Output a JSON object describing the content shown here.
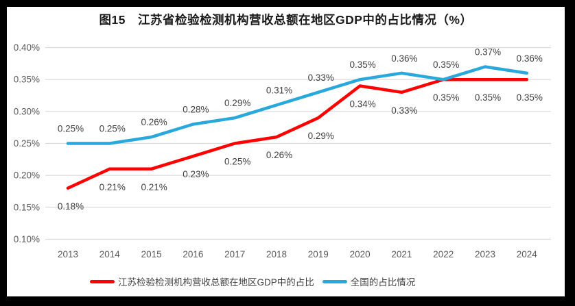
{
  "title": "图15　江苏省检验检测机构营收总额在地区GDP中的占比情况（%）",
  "colors": {
    "jiangsu_red": "#FF0000",
    "national_blue": "#29A8DC",
    "gridline": "#D9D9D9",
    "axis_text": "#595959",
    "label_text": "#404040",
    "frame": "#000000",
    "panel": "#FFFFFF"
  },
  "chart_data": {
    "type": "line",
    "title": "图15　江苏省检验检测机构营收总额在地区GDP中的占比情况（%）",
    "categories": [
      "2013",
      "2014",
      "2015",
      "2016",
      "2017",
      "2018",
      "2019",
      "2020",
      "2021",
      "2022",
      "2023",
      "2024"
    ],
    "series": [
      {
        "name": "江苏检验检测机构营收总额在地区GDP中的占比",
        "color": "#FF0000",
        "label_position": "below",
        "values": [
          0.18,
          0.21,
          0.21,
          0.23,
          0.25,
          0.26,
          0.29,
          0.34,
          0.33,
          0.35,
          0.35,
          0.35
        ],
        "labels": [
          "0.18%",
          "0.21%",
          "0.21%",
          "0.23%",
          "0.25%",
          "0.26%",
          "0.29%",
          "0.34%",
          "0.33%",
          "0.35%",
          "0.35%",
          "0.35%"
        ]
      },
      {
        "name": "全国的占比情况",
        "color": "#29A8DC",
        "label_position": "above",
        "values": [
          0.25,
          0.25,
          0.26,
          0.28,
          0.29,
          0.31,
          0.33,
          0.35,
          0.36,
          0.35,
          0.37,
          0.36
        ],
        "labels": [
          "0.25%",
          "0.25%",
          "0.26%",
          "0.28%",
          "0.29%",
          "0.31%",
          "0.33%",
          "0.35%",
          "0.36%",
          "0.35%",
          "0.37%",
          "0.36%"
        ]
      }
    ],
    "xlabel": "",
    "ylabel": "",
    "ylim": [
      0.1,
      0.4
    ],
    "yticks": [
      0.1,
      0.15,
      0.2,
      0.25,
      0.3,
      0.35,
      0.4
    ],
    "ytick_labels": [
      "0.10%",
      "0.15%",
      "0.20%",
      "0.25%",
      "0.30%",
      "0.35%",
      "0.40%"
    ],
    "grid": true,
    "legend_position": "bottom"
  }
}
